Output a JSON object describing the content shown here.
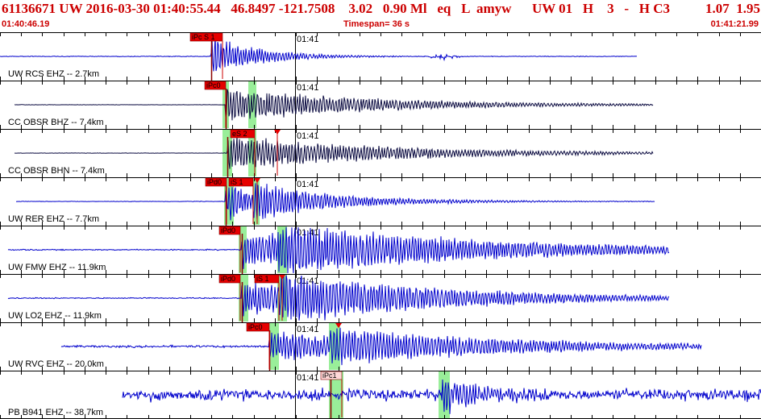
{
  "header": {
    "event_line": "61136671 UW 2016-03-30 01:40:55.44   46.8497 -121.7508    3.02   0.90 Ml   eq   L  amyw      UW 01   H    3   -   H C3",
    "magnitudes": "1.07  1.95",
    "start_time": "01:40:46.19",
    "timespan": "Timespan=  36 s",
    "end_time": "01:41:21.99"
  },
  "minute_tick_label": "01:41",
  "colors": {
    "header_text": "#cc0000",
    "trace_blue": "#0000cc",
    "trace_dark": "#0a0a40",
    "pick_box": "#e60000",
    "pick_box_light": "#ffd8d8",
    "window_green": "#99ee99",
    "grid": "#000000"
  },
  "channels": [
    {
      "label": "UW RCS EHZ -- 2.7km",
      "trace_color": "#0000cc",
      "picks": [
        {
          "text": "iPc S 1"
        }
      ]
    },
    {
      "label": "CC OBSR BHZ -- 7.4km",
      "trace_color": "#0a0a40",
      "picks": [
        {
          "text": "iPc0"
        }
      ]
    },
    {
      "label": "CC OBSR BHN -- 7.4km",
      "trace_color": "#0a0a40",
      "picks": [
        {
          "text": "eS 2"
        }
      ]
    },
    {
      "label": "UW RER EHZ -- 7.7km",
      "trace_color": "#0000cc",
      "picks": [
        {
          "text": "iPd0"
        },
        {
          "text": "iS 1"
        }
      ]
    },
    {
      "label": "UW FMW EHZ -- 11.9km",
      "trace_color": "#0000cc",
      "picks": [
        {
          "text": "iPd0"
        }
      ]
    },
    {
      "label": "UW LO2 EHZ -- 11.9km",
      "trace_color": "#0000cc",
      "picks": [
        {
          "text": "iPd0"
        },
        {
          "text": "iS 1"
        }
      ]
    },
    {
      "label": "UW RVC EHZ -- 20.0km",
      "trace_color": "#0000cc",
      "picks": [
        {
          "text": "iPc0"
        }
      ]
    },
    {
      "label": "PB B941 EHZ -- 38.7km",
      "trace_color": "#0000cc",
      "picks": [
        {
          "text": "iPc1"
        }
      ]
    }
  ]
}
